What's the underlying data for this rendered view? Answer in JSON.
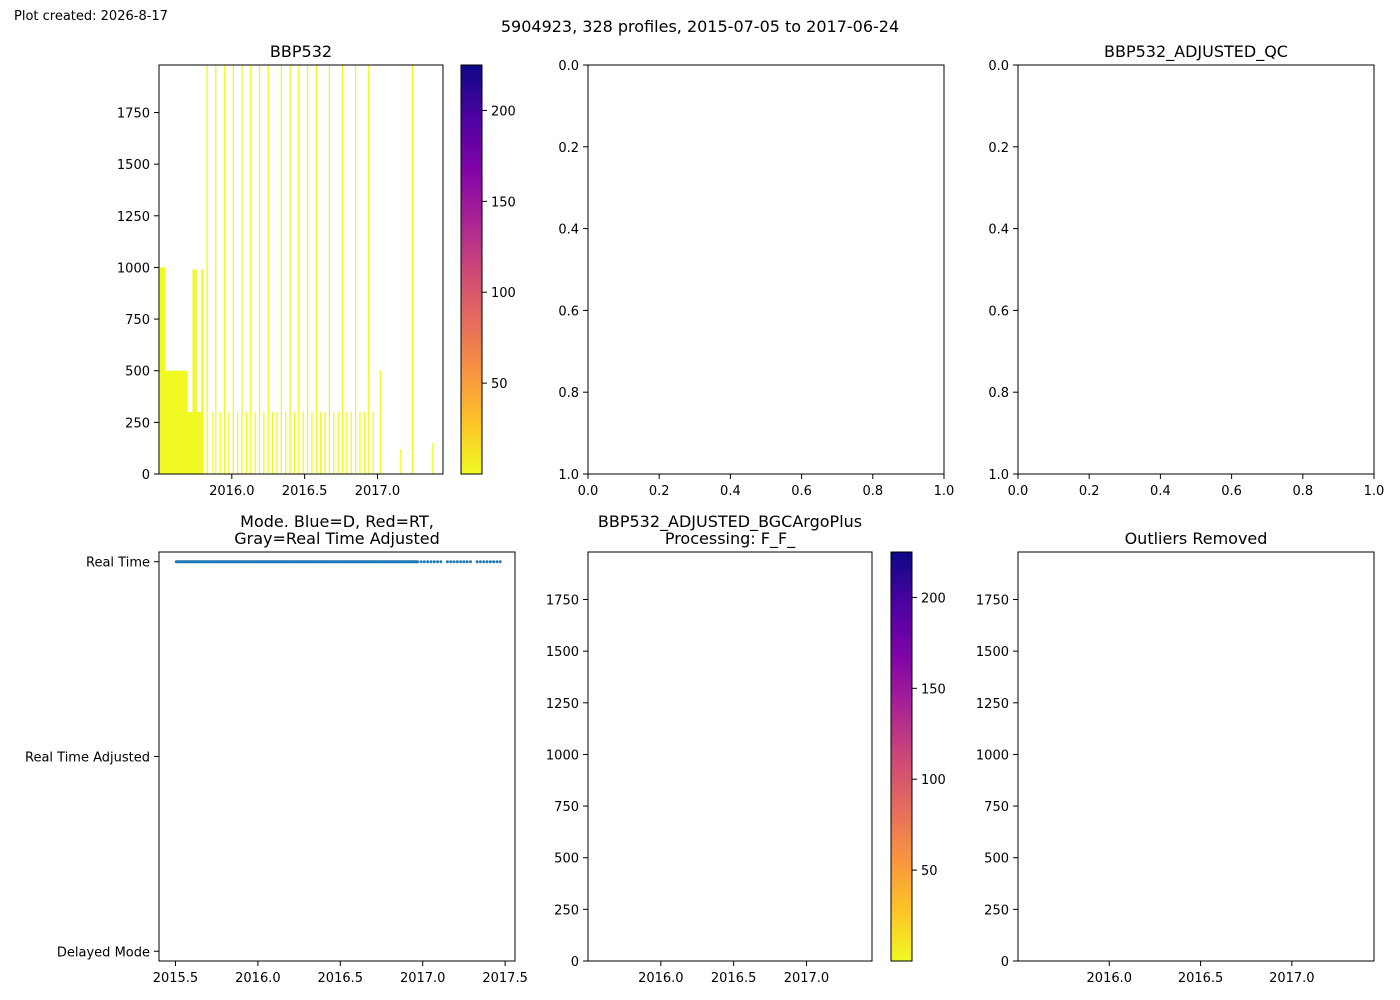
{
  "header": {
    "created": "Plot created: 2026-8-17",
    "suptitle": "5904923, 328 profiles, 2015-07-05 to 2017-06-24"
  },
  "colormap": [
    "#f0f921",
    "#fdc328",
    "#f89441",
    "#e56b5d",
    "#cc4778",
    "#a82296",
    "#7e03a8",
    "#4c02a1",
    "#0d0887"
  ],
  "chart_data": [
    {
      "id": "bbp532",
      "type": "heatmap",
      "title": "BBP532",
      "xlim": [
        2015.5,
        2017.45
      ],
      "ylim": [
        1980,
        0
      ],
      "y_inverted": true,
      "xticks": [
        2016.0,
        2016.5,
        2017.0
      ],
      "xtick_labels": [
        "2016.0",
        "2016.5",
        "2017.0"
      ],
      "yticks": [
        0,
        250,
        500,
        750,
        1000,
        1250,
        1500,
        1750
      ],
      "ytick_labels": [
        "0",
        "250",
        "500",
        "750",
        "1000",
        "1250",
        "1500",
        "1750"
      ],
      "colorbar": {
        "range": [
          0,
          225
        ],
        "ticks": [
          50,
          100,
          150,
          200
        ],
        "tick_labels": [
          "50",
          "100",
          "150",
          "200"
        ],
        "colormap": "plasma_r"
      },
      "fill_blocks": [
        {
          "x0": 2015.505,
          "x1": 2015.545,
          "depth": 1000
        },
        {
          "x0": 2015.545,
          "x1": 2015.695,
          "depth": 500
        },
        {
          "x0": 2015.695,
          "x1": 2015.73,
          "depth": 300
        },
        {
          "x0": 2015.73,
          "x1": 2015.76,
          "depth": 990
        },
        {
          "x0": 2015.76,
          "x1": 2015.79,
          "depth": 300
        },
        {
          "x0": 2015.79,
          "x1": 2015.805,
          "depth": 990
        }
      ],
      "profile_lines": [
        {
          "x": 2015.83,
          "depth": 1980
        },
        {
          "x": 2015.87,
          "depth": 300
        },
        {
          "x": 2015.89,
          "depth": 1980
        },
        {
          "x": 2015.92,
          "depth": 300
        },
        {
          "x": 2015.95,
          "depth": 1980
        },
        {
          "x": 2015.98,
          "depth": 300
        },
        {
          "x": 2016.01,
          "depth": 1980
        },
        {
          "x": 2016.04,
          "depth": 300
        },
        {
          "x": 2016.07,
          "depth": 1980
        },
        {
          "x": 2016.1,
          "depth": 300
        },
        {
          "x": 2016.13,
          "depth": 1980
        },
        {
          "x": 2016.16,
          "depth": 300
        },
        {
          "x": 2016.19,
          "depth": 1980
        },
        {
          "x": 2016.22,
          "depth": 300
        },
        {
          "x": 2016.25,
          "depth": 1980
        },
        {
          "x": 2016.28,
          "depth": 300
        },
        {
          "x": 2016.31,
          "depth": 300
        },
        {
          "x": 2016.34,
          "depth": 1980
        },
        {
          "x": 2016.37,
          "depth": 300
        },
        {
          "x": 2016.4,
          "depth": 1980
        },
        {
          "x": 2016.43,
          "depth": 300
        },
        {
          "x": 2016.46,
          "depth": 1980
        },
        {
          "x": 2016.49,
          "depth": 300
        },
        {
          "x": 2016.52,
          "depth": 1980
        },
        {
          "x": 2016.55,
          "depth": 300
        },
        {
          "x": 2016.58,
          "depth": 1980
        },
        {
          "x": 2016.61,
          "depth": 300
        },
        {
          "x": 2016.64,
          "depth": 300
        },
        {
          "x": 2016.67,
          "depth": 1980
        },
        {
          "x": 2016.7,
          "depth": 300
        },
        {
          "x": 2016.73,
          "depth": 300
        },
        {
          "x": 2016.76,
          "depth": 1980
        },
        {
          "x": 2016.79,
          "depth": 300
        },
        {
          "x": 2016.82,
          "depth": 300
        },
        {
          "x": 2016.85,
          "depth": 1980
        },
        {
          "x": 2016.88,
          "depth": 300
        },
        {
          "x": 2016.91,
          "depth": 300
        },
        {
          "x": 2016.94,
          "depth": 1980
        },
        {
          "x": 2016.97,
          "depth": 300
        },
        {
          "x": 2017.02,
          "depth": 500
        },
        {
          "x": 2017.16,
          "depth": 120
        },
        {
          "x": 2017.24,
          "depth": 1980
        },
        {
          "x": 2017.38,
          "depth": 150
        }
      ]
    },
    {
      "id": "empty-top-middle",
      "type": "scatter",
      "title": "",
      "xlim": [
        0,
        1
      ],
      "ylim": [
        0,
        1
      ],
      "xticks": [
        0,
        0.2,
        0.4,
        0.6,
        0.8,
        1.0
      ],
      "xtick_labels": [
        "0.0",
        "0.2",
        "0.4",
        "0.6",
        "0.8",
        "1.0"
      ],
      "yticks": [
        0,
        0.2,
        0.4,
        0.6,
        0.8,
        1.0
      ],
      "ytick_labels": [
        "0.0",
        "0.2",
        "0.4",
        "0.6",
        "0.8",
        "1.0"
      ]
    },
    {
      "id": "bbp532-adjusted-qc",
      "type": "scatter",
      "title": "BBP532_ADJUSTED_QC",
      "xlim": [
        0,
        1
      ],
      "ylim": [
        0,
        1
      ],
      "xticks": [
        0,
        0.2,
        0.4,
        0.6,
        0.8,
        1.0
      ],
      "xtick_labels": [
        "0.0",
        "0.2",
        "0.4",
        "0.6",
        "0.8",
        "1.0"
      ],
      "yticks": [
        0,
        0.2,
        0.4,
        0.6,
        0.8,
        1.0
      ],
      "ytick_labels": [
        "0.0",
        "0.2",
        "0.4",
        "0.6",
        "0.8",
        "1.0"
      ]
    },
    {
      "id": "mode",
      "type": "scatter",
      "title": "Mode. Blue=D, Red=RT,\nGray=Real Time Adjusted",
      "xlim": [
        2015.4,
        2017.56
      ],
      "ylim": [
        -0.05,
        2.05
      ],
      "xticks": [
        2015.5,
        2016.0,
        2016.5,
        2017.0,
        2017.5
      ],
      "xtick_labels": [
        "2015.5",
        "2016.0",
        "2016.5",
        "2017.0",
        "2017.5"
      ],
      "yticks": [
        0,
        1,
        2
      ],
      "ytick_labels": [
        "Real Time",
        "Real Time Adjusted",
        "Delayed Mode"
      ],
      "series": [
        {
          "marker_color": "#1f77b4",
          "dense_range": [
            2015.505,
            2016.97
          ],
          "dense_step": 0.006,
          "y": 0,
          "sparse_x": [
            2016.99,
            2017.01,
            2017.03,
            2017.05,
            2017.07,
            2017.09,
            2017.11,
            2017.15,
            2017.17,
            2017.19,
            2017.21,
            2017.23,
            2017.25,
            2017.27,
            2017.29,
            2017.33,
            2017.35,
            2017.37,
            2017.39,
            2017.41,
            2017.43,
            2017.45,
            2017.47
          ]
        }
      ]
    },
    {
      "id": "bbp532-adjusted-bgcargoplus",
      "type": "heatmap",
      "title": "BBP532_ADJUSTED_BGCArgoPlus\nProcessing: F_F_",
      "xlim": [
        2015.5,
        2017.45
      ],
      "ylim": [
        1980,
        0
      ],
      "y_inverted": true,
      "xticks": [
        2016.0,
        2016.5,
        2017.0
      ],
      "xtick_labels": [
        "2016.0",
        "2016.5",
        "2017.0"
      ],
      "yticks": [
        0,
        250,
        500,
        750,
        1000,
        1250,
        1500,
        1750
      ],
      "ytick_labels": [
        "0",
        "250",
        "500",
        "750",
        "1000",
        "1250",
        "1500",
        "1750"
      ],
      "colorbar": {
        "range": [
          0,
          225
        ],
        "ticks": [
          50,
          100,
          150,
          200
        ],
        "tick_labels": [
          "50",
          "100",
          "150",
          "200"
        ],
        "colormap": "plasma_r"
      }
    },
    {
      "id": "outliers-removed",
      "type": "heatmap",
      "title": "Outliers Removed",
      "xlim": [
        2015.5,
        2017.45
      ],
      "ylim": [
        1980,
        0
      ],
      "y_inverted": true,
      "xticks": [
        2016.0,
        2016.5,
        2017.0
      ],
      "xtick_labels": [
        "2016.0",
        "2016.5",
        "2017.0"
      ],
      "yticks": [
        0,
        250,
        500,
        750,
        1000,
        1250,
        1500,
        1750
      ],
      "ytick_labels": [
        "0",
        "250",
        "500",
        "750",
        "1000",
        "1250",
        "1500",
        "1750"
      ]
    }
  ]
}
